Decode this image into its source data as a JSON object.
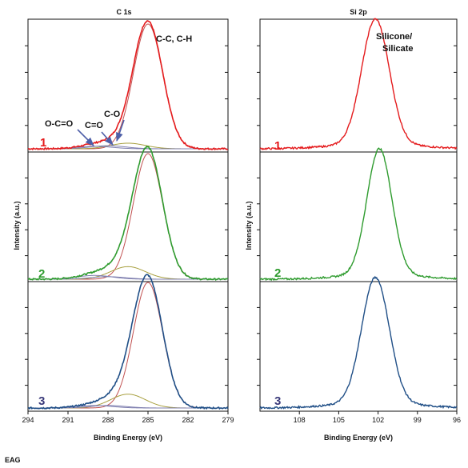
{
  "footer": "EAG",
  "colors": {
    "s1": "#e41a1c",
    "s2": "#2e9b2e",
    "s3": "#1f4e86",
    "label3": "#3a3a7a",
    "fit_main": "#c05050",
    "fit_co": "#a8a040",
    "fit_other": "#8080b0",
    "arrow": "#4e5fa8"
  },
  "chart_data": [
    {
      "type": "line",
      "title": "C 1s",
      "xlabel": "Binding Energy (eV)",
      "ylabel": "Intensity (a.u.)",
      "xlim": [
        294,
        279
      ],
      "x_reversed": true,
      "xticks": [
        294,
        291,
        288,
        285,
        282,
        279
      ],
      "xtick_labels": [
        "294",
        "291",
        "288",
        "285",
        "282",
        "279"
      ],
      "panels": [
        {
          "label": "1",
          "color_key": "s1"
        },
        {
          "label": "2",
          "color_key": "s2"
        },
        {
          "label": "3",
          "color_key": "s3"
        }
      ],
      "components": [
        {
          "center": 285.0,
          "width": 1.1,
          "heights": [
            1.0,
            1.0,
            1.0
          ],
          "color_key": "fit_main"
        },
        {
          "center": 286.5,
          "width": 1.3,
          "heights": [
            0.045,
            0.1,
            0.11
          ],
          "color_key": "fit_co"
        },
        {
          "center": 288.0,
          "width": 1.3,
          "heights": [
            0.025,
            0.02,
            0.02
          ],
          "color_key": "fit_other"
        },
        {
          "center": 289.0,
          "width": 1.3,
          "heights": [
            0.02,
            0.03,
            0.02
          ],
          "color_key": "fit_other"
        }
      ],
      "annotations": [
        {
          "text": "C-C, C-H"
        },
        {
          "text": "C-O"
        },
        {
          "text": "C=O"
        },
        {
          "text": "O-C=O"
        }
      ]
    },
    {
      "type": "line",
      "title": "Si 2p",
      "xlabel": "Binding Energy (eV)",
      "ylabel": "Intensity (a.u.)",
      "xlim": [
        111,
        96
      ],
      "x_reversed": true,
      "xticks": [
        108,
        105,
        102,
        99,
        96
      ],
      "xtick_labels": [
        "108",
        "105",
        "102",
        "99",
        "96"
      ],
      "panels": [
        {
          "label": "1",
          "color_key": "s1"
        },
        {
          "label": "2",
          "color_key": "s2"
        },
        {
          "label": "3",
          "color_key": "s3"
        }
      ],
      "peaks": [
        {
          "center": 102.2,
          "width": 1.05
        },
        {
          "center": 101.9,
          "width": 0.95
        },
        {
          "center": 102.2,
          "width": 1.05
        }
      ],
      "annotations": [
        {
          "text_lines": [
            "Silicone/",
            "Silicate"
          ]
        }
      ]
    }
  ]
}
